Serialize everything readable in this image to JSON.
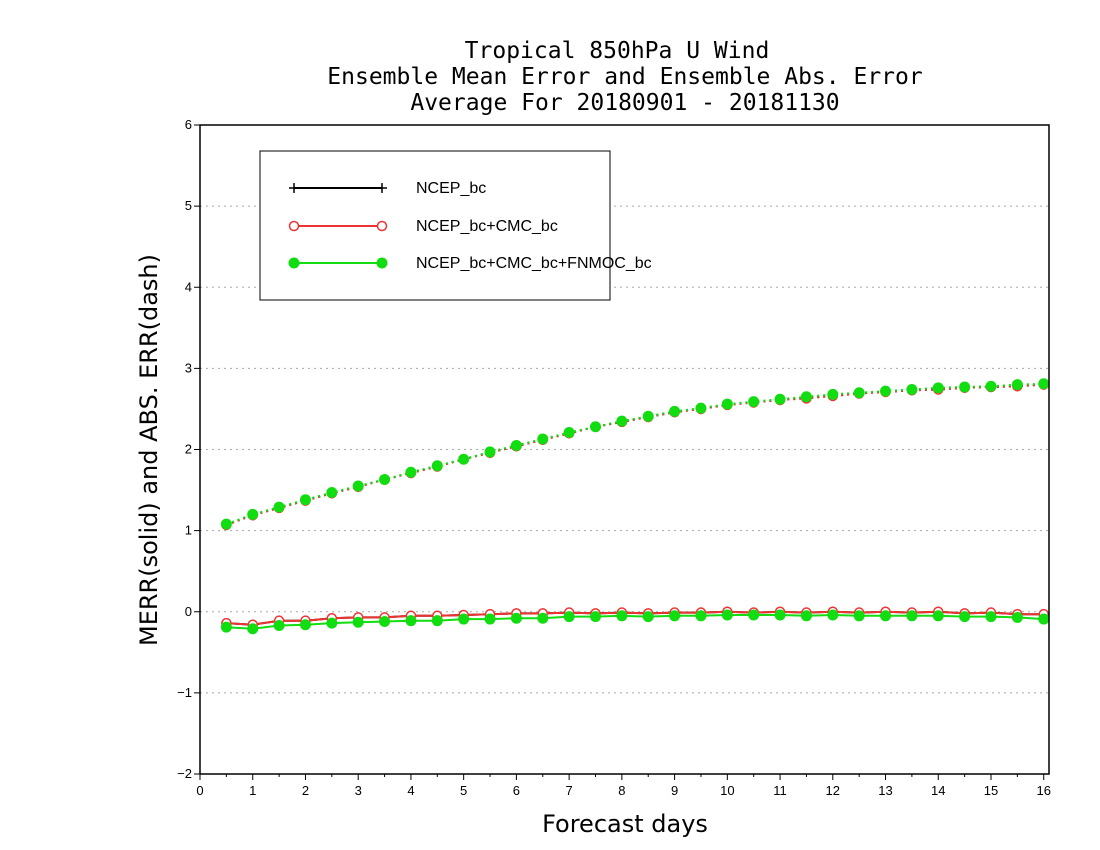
{
  "chart_data": {
    "type": "line",
    "title": [
      "Tropical 850hPa U Wind",
      "Ensemble Mean Error and Ensemble Abs. Error",
      "Average For 20180901 - 20181130"
    ],
    "xlabel": "Forecast days",
    "ylabel": "MERR(solid) and ABS. ERR(dash)",
    "xlim": [
      0,
      16.1
    ],
    "ylim": [
      -2,
      6
    ],
    "xticks": [
      0,
      1,
      2,
      3,
      4,
      5,
      6,
      7,
      8,
      9,
      10,
      11,
      12,
      13,
      14,
      15,
      16
    ],
    "xtick_labels": [
      "0",
      "1",
      "2",
      "3",
      "4",
      "5",
      "6",
      "7",
      "8",
      "9",
      "10",
      "11",
      "12",
      "13",
      "14",
      "15",
      "16"
    ],
    "yticks": [
      -2,
      -1,
      0,
      1,
      2,
      3,
      4,
      5,
      6
    ],
    "ytick_labels": [
      "−2",
      "−1",
      "0",
      "1",
      "2",
      "3",
      "4",
      "5",
      "6"
    ],
    "grid": "horizontal dotted",
    "legend_position": "top-left",
    "x": [
      0.5,
      1,
      1.5,
      2,
      2.5,
      3,
      3.5,
      4,
      4.5,
      5,
      5.5,
      6,
      6.5,
      7,
      7.5,
      8,
      8.5,
      9,
      9.5,
      10,
      10.5,
      11,
      11.5,
      12,
      12.5,
      13,
      13.5,
      14,
      14.5,
      15,
      15.5,
      16
    ],
    "series": [
      {
        "name": "NCEP_bc",
        "color": "#000000",
        "marker": "plus",
        "merr": [
          -0.14,
          -0.16,
          -0.11,
          -0.11,
          -0.08,
          -0.07,
          -0.07,
          -0.05,
          -0.05,
          -0.04,
          -0.03,
          -0.02,
          -0.02,
          -0.01,
          -0.02,
          -0.01,
          -0.02,
          -0.01,
          -0.01,
          0.0,
          -0.01,
          0.0,
          -0.01,
          0.0,
          -0.01,
          0.0,
          -0.01,
          0.0,
          -0.02,
          -0.01,
          -0.03,
          -0.03
        ],
        "abs_err": [
          1.07,
          1.19,
          1.28,
          1.37,
          1.46,
          1.54,
          1.63,
          1.71,
          1.79,
          1.88,
          1.96,
          2.04,
          2.12,
          2.2,
          2.28,
          2.34,
          2.4,
          2.46,
          2.5,
          2.55,
          2.58,
          2.61,
          2.64,
          2.66,
          2.69,
          2.71,
          2.73,
          2.74,
          2.76,
          2.77,
          2.78,
          2.8
        ]
      },
      {
        "name": "NCEP_bc+CMC_bc",
        "color": "#ee3333",
        "marker": "open-circle",
        "merr": [
          -0.14,
          -0.16,
          -0.11,
          -0.11,
          -0.08,
          -0.07,
          -0.07,
          -0.05,
          -0.05,
          -0.04,
          -0.03,
          -0.02,
          -0.02,
          -0.01,
          -0.02,
          -0.01,
          -0.02,
          -0.01,
          -0.01,
          0.0,
          -0.01,
          0.0,
          -0.01,
          0.0,
          -0.01,
          0.0,
          -0.01,
          0.0,
          -0.02,
          -0.01,
          -0.03,
          -0.03
        ],
        "abs_err": [
          1.07,
          1.19,
          1.28,
          1.37,
          1.46,
          1.54,
          1.63,
          1.71,
          1.79,
          1.88,
          1.96,
          2.04,
          2.12,
          2.2,
          2.28,
          2.34,
          2.4,
          2.46,
          2.5,
          2.55,
          2.58,
          2.61,
          2.63,
          2.66,
          2.69,
          2.71,
          2.73,
          2.74,
          2.76,
          2.77,
          2.78,
          2.8
        ]
      },
      {
        "name": "NCEP_bc+CMC_bc+FNMOC_bc",
        "color": "#11dd11",
        "marker": "filled-circle",
        "merr": [
          -0.19,
          -0.21,
          -0.17,
          -0.16,
          -0.14,
          -0.13,
          -0.12,
          -0.11,
          -0.11,
          -0.09,
          -0.09,
          -0.08,
          -0.08,
          -0.06,
          -0.06,
          -0.05,
          -0.06,
          -0.05,
          -0.05,
          -0.04,
          -0.04,
          -0.04,
          -0.05,
          -0.04,
          -0.05,
          -0.05,
          -0.05,
          -0.05,
          -0.06,
          -0.06,
          -0.07,
          -0.09
        ],
        "abs_err": [
          1.08,
          1.2,
          1.29,
          1.38,
          1.47,
          1.55,
          1.63,
          1.72,
          1.8,
          1.88,
          1.97,
          2.05,
          2.13,
          2.21,
          2.28,
          2.35,
          2.41,
          2.47,
          2.51,
          2.56,
          2.59,
          2.62,
          2.65,
          2.68,
          2.7,
          2.72,
          2.74,
          2.76,
          2.77,
          2.78,
          2.8,
          2.81
        ]
      }
    ]
  }
}
